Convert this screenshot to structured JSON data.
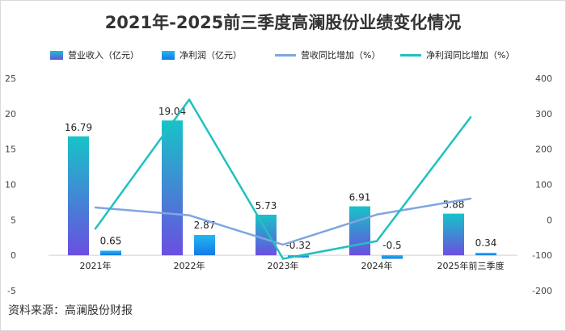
{
  "title": "2021年-2025前三季度高澜股份业绩变化情况",
  "source": "资料来源：高澜股份财报",
  "colors": {
    "revenue_top": "#17c3c8",
    "revenue_bottom": "#6a4fe0",
    "profit_top": "#23b8f0",
    "profit_bottom": "#1479e6",
    "revenue_growth_line": "#7fa6e0",
    "profit_growth_line": "#21c0c0",
    "grid": "#e6e6e6"
  },
  "chart_data": {
    "type": "bar",
    "title": "2021年-2025前三季度高澜股份业绩变化情况",
    "categories": [
      "2021年",
      "2022年",
      "2023年",
      "2024年",
      "2025年前三季度"
    ],
    "series": [
      {
        "name": "营业收入（亿元）",
        "type": "bar",
        "axis": "left",
        "values": [
          16.79,
          19.04,
          5.73,
          6.91,
          5.88
        ]
      },
      {
        "name": "净利润（亿元）",
        "type": "bar",
        "axis": "left",
        "values": [
          0.65,
          2.87,
          -0.32,
          -0.5,
          0.34
        ]
      },
      {
        "name": "营收同比增加（%）",
        "type": "line",
        "axis": "right",
        "values": [
          35,
          13,
          -70,
          15,
          60
        ]
      },
      {
        "name": "净利润同比增加（%）",
        "type": "line",
        "axis": "right",
        "values": [
          -25,
          340,
          -110,
          -60,
          290
        ]
      }
    ],
    "y_left": {
      "min": -5,
      "max": 25,
      "ticks": [
        -5,
        0,
        5,
        10,
        15,
        20,
        25
      ]
    },
    "y_right": {
      "min": -200,
      "max": 400,
      "ticks": [
        -200,
        -100,
        0,
        100,
        200,
        300,
        400
      ]
    },
    "legend_position": "top",
    "grid": false
  }
}
